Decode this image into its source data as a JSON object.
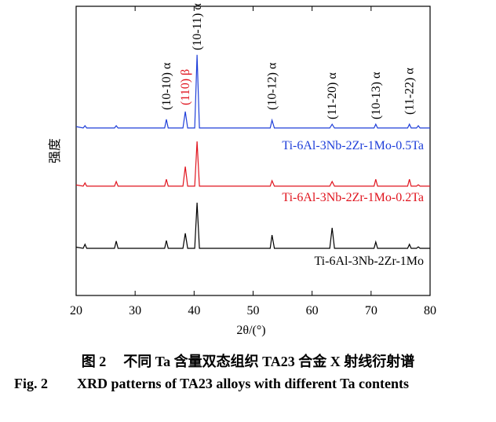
{
  "chart_data": {
    "type": "line",
    "xlabel": "2θ/(°)",
    "ylabel": "强度",
    "xlim": [
      20,
      80
    ],
    "xticks": [
      20,
      30,
      40,
      50,
      60,
      70,
      80
    ],
    "ylim": [
      0,
      100
    ],
    "x": [
      20,
      21.2,
      21.5,
      21.8,
      26.5,
      26.8,
      27.1,
      35.0,
      35.3,
      35.6,
      38.1,
      38.5,
      38.9,
      40.1,
      40.5,
      40.9,
      52.9,
      53.2,
      53.6,
      63.0,
      63.4,
      63.8,
      70.5,
      70.8,
      71.1,
      76.2,
      76.5,
      76.8,
      77.7,
      78.0,
      78.3,
      80
    ],
    "series": [
      {
        "name": "Ti-6Al-3Nb-2Zr-1Mo-0.5Ta",
        "color": "#1f3fd9",
        "values": [
          58.4,
          57.9,
          58.7,
          57.9,
          57.9,
          58.7,
          57.9,
          57.9,
          60.9,
          57.9,
          57.9,
          63.6,
          57.9,
          57.9,
          83.2,
          57.9,
          57.9,
          60.6,
          57.9,
          57.9,
          59.2,
          57.9,
          57.9,
          59.2,
          57.9,
          57.9,
          59.2,
          57.9,
          57.9,
          58.7,
          57.9,
          57.9
        ]
      },
      {
        "name": "Ti-6Al-3Nb-2Zr-1Mo-0.2Ta",
        "color": "#e0141e",
        "values": [
          38.2,
          37.8,
          38.9,
          37.8,
          37.8,
          39.4,
          37.8,
          37.8,
          40.2,
          37.8,
          37.8,
          44.6,
          37.8,
          37.8,
          53.3,
          37.8,
          37.8,
          39.7,
          37.8,
          37.8,
          39.4,
          37.8,
          37.8,
          40.2,
          37.8,
          37.8,
          40.2,
          37.8,
          37.8,
          38.3,
          37.8,
          37.8
        ]
      },
      {
        "name": "Ti-6Al-3Nb-2Zr-1Mo",
        "color": "#000000",
        "values": [
          16.7,
          16.3,
          17.7,
          16.3,
          16.3,
          18.8,
          16.3,
          16.3,
          19.0,
          16.3,
          16.3,
          21.5,
          16.3,
          16.3,
          32.1,
          16.3,
          16.3,
          20.9,
          16.3,
          16.3,
          23.4,
          16.3,
          16.3,
          18.5,
          16.3,
          16.3,
          17.7,
          16.3,
          16.3,
          16.8,
          16.3,
          16.3
        ]
      }
    ],
    "annotations": [
      {
        "text": "(10-10) α",
        "color": "#000000"
      },
      {
        "text": "(110) β",
        "color": "#e0141e"
      },
      {
        "text": "(10-11) α",
        "color": "#000000"
      },
      {
        "text": "(10-12) α",
        "color": "#000000"
      },
      {
        "text": "(11-20) α",
        "color": "#000000"
      },
      {
        "text": "(10-13) α",
        "color": "#000000"
      },
      {
        "text": "(11-22) α",
        "color": "#000000"
      }
    ]
  },
  "figure": {
    "label_cn": "图 2",
    "caption_cn": "不同 Ta 含量双态组织 TA23 合金 X 射线衍射谱",
    "label_en": "Fig. 2",
    "caption_en": "XRD patterns of TA23 alloys with different Ta contents"
  }
}
